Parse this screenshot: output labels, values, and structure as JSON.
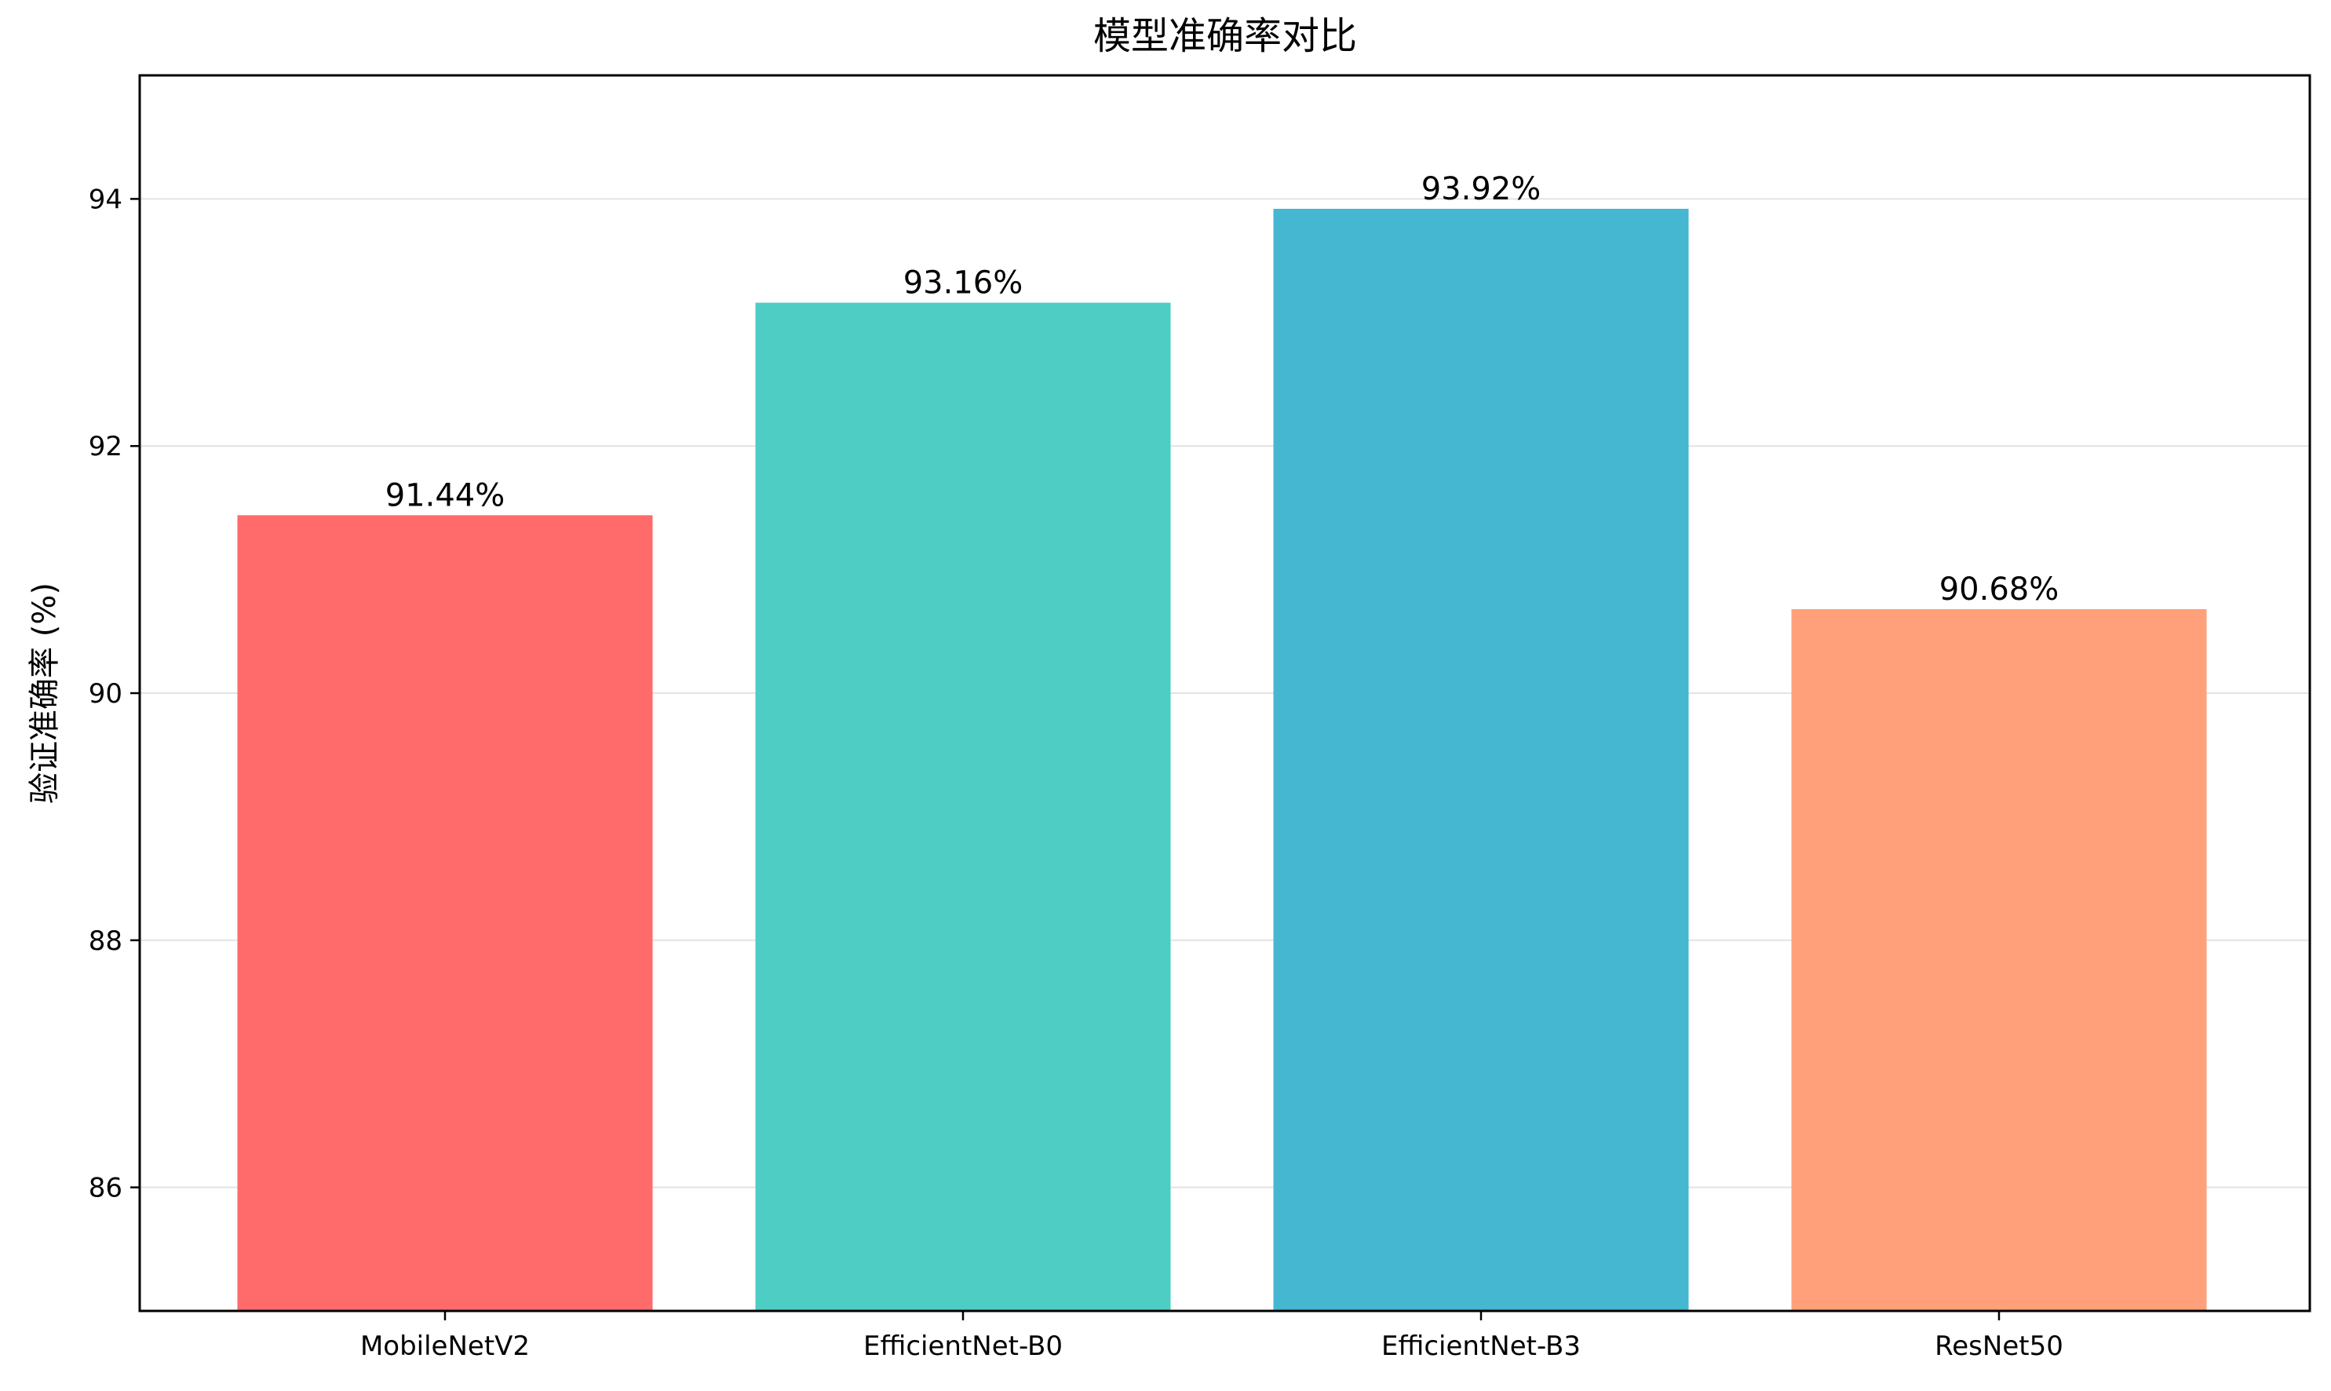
{
  "chart_data": {
    "type": "bar",
    "title": "模型准确率对比",
    "xlabel": "",
    "ylabel": "验证准确率 (%)",
    "categories": [
      "MobileNetV2",
      "EfficientNet-B0",
      "EfficientNet-B3",
      "ResNet50"
    ],
    "values": [
      91.44,
      93.16,
      93.92,
      90.68
    ],
    "value_labels": [
      "91.44%",
      "93.16%",
      "93.92%",
      "90.68%"
    ],
    "colors": [
      "#ff6b6b",
      "#4ecdc4",
      "#45b7d1",
      "#ffa07a"
    ],
    "ylim": [
      85,
      95
    ],
    "yticks": [
      86,
      88,
      90,
      92,
      94
    ],
    "ytick_labels": [
      "86",
      "88",
      "90",
      "92",
      "94"
    ],
    "grid": "horizontal",
    "legend": "none"
  }
}
